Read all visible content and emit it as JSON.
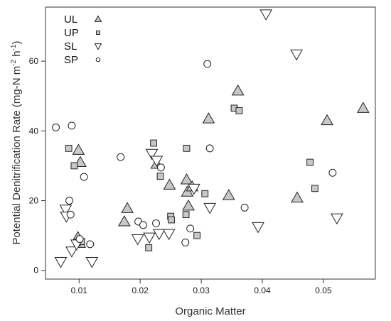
{
  "chart_data": {
    "type": "scatter",
    "xlabel": "Organic Matter",
    "ylabel": "Potential Denitrification Rate (mg-N m",
    "ylabel_sup1": "-2",
    "ylabel_mid": " h",
    "ylabel_sup2": "-1",
    "ylabel_end": ")",
    "xlim": [
      0.0045,
      0.0585
    ],
    "ylim": [
      -2.5,
      75.5
    ],
    "xticks": [
      0.01,
      0.02,
      0.03,
      0.04,
      0.05
    ],
    "xtick_labels": [
      "0.01",
      "0.02",
      "0.03",
      "0.04",
      "0.05"
    ],
    "yticks": [
      0,
      20,
      40,
      60
    ],
    "ytick_labels": [
      "0",
      "20",
      "40",
      "60"
    ],
    "grid": false,
    "legend_position": "top-left",
    "series": [
      {
        "name": "UL",
        "marker": "triangle-up",
        "fill": "#c8c8c8",
        "points": [
          [
            0.0099,
            34.5
          ],
          [
            0.0102,
            31.0
          ],
          [
            0.0098,
            9.5
          ],
          [
            0.0101,
            7.8
          ],
          [
            0.0174,
            14.0
          ],
          [
            0.0179,
            17.8
          ],
          [
            0.0227,
            30.5
          ],
          [
            0.0248,
            24.5
          ],
          [
            0.0276,
            26.0
          ],
          [
            0.0277,
            22.5
          ],
          [
            0.0279,
            18.5
          ],
          [
            0.0285,
            24.0
          ],
          [
            0.0312,
            43.5
          ],
          [
            0.0345,
            21.5
          ],
          [
            0.036,
            51.5
          ],
          [
            0.0457,
            20.8
          ],
          [
            0.0506,
            43.0
          ],
          [
            0.0565,
            46.5
          ]
        ]
      },
      {
        "name": "UP",
        "marker": "square",
        "fill": "#c8c8c8",
        "points": [
          [
            0.0083,
            35.0
          ],
          [
            0.0092,
            30.0
          ],
          [
            0.0097,
            8.0
          ],
          [
            0.0104,
            8.3
          ],
          [
            0.0214,
            6.5
          ],
          [
            0.0222,
            36.5
          ],
          [
            0.0233,
            27.0
          ],
          [
            0.025,
            15.5
          ],
          [
            0.0251,
            14.5
          ],
          [
            0.0276,
            35.0
          ],
          [
            0.0275,
            16.0
          ],
          [
            0.0293,
            10.0
          ],
          [
            0.0306,
            22.0
          ],
          [
            0.0354,
            46.5
          ],
          [
            0.0362,
            45.8
          ],
          [
            0.0478,
            31.0
          ],
          [
            0.0486,
            23.5
          ]
        ]
      },
      {
        "name": "SL",
        "marker": "triangle-down",
        "fill": "#ffffff",
        "points": [
          [
            0.007,
            2.5
          ],
          [
            0.0078,
            17.5
          ],
          [
            0.0079,
            15.5
          ],
          [
            0.0088,
            5.5
          ],
          [
            0.0096,
            7.5
          ],
          [
            0.0121,
            2.5
          ],
          [
            0.0196,
            9.0
          ],
          [
            0.0215,
            9.5
          ],
          [
            0.0219,
            33.5
          ],
          [
            0.0227,
            31.5
          ],
          [
            0.0231,
            10.5
          ],
          [
            0.0247,
            10.5
          ],
          [
            0.0288,
            23.5
          ],
          [
            0.0314,
            18.0
          ],
          [
            0.0393,
            12.5
          ],
          [
            0.0406,
            73.5
          ],
          [
            0.0456,
            62.0
          ],
          [
            0.0522,
            15.0
          ]
        ]
      },
      {
        "name": "SP",
        "marker": "circle",
        "fill": "#ffffff",
        "points": [
          [
            0.0062,
            41.0
          ],
          [
            0.0088,
            41.5
          ],
          [
            0.0084,
            20.0
          ],
          [
            0.0086,
            16.0
          ],
          [
            0.0101,
            9.0
          ],
          [
            0.0108,
            26.8
          ],
          [
            0.0118,
            7.5
          ],
          [
            0.0168,
            32.5
          ],
          [
            0.0197,
            14.0
          ],
          [
            0.0205,
            13.0
          ],
          [
            0.0226,
            13.5
          ],
          [
            0.0234,
            29.5
          ],
          [
            0.0274,
            8.0
          ],
          [
            0.0282,
            12.0
          ],
          [
            0.031,
            59.2
          ],
          [
            0.0314,
            35.0
          ],
          [
            0.0371,
            18.0
          ],
          [
            0.0515,
            28.0
          ]
        ]
      }
    ]
  }
}
